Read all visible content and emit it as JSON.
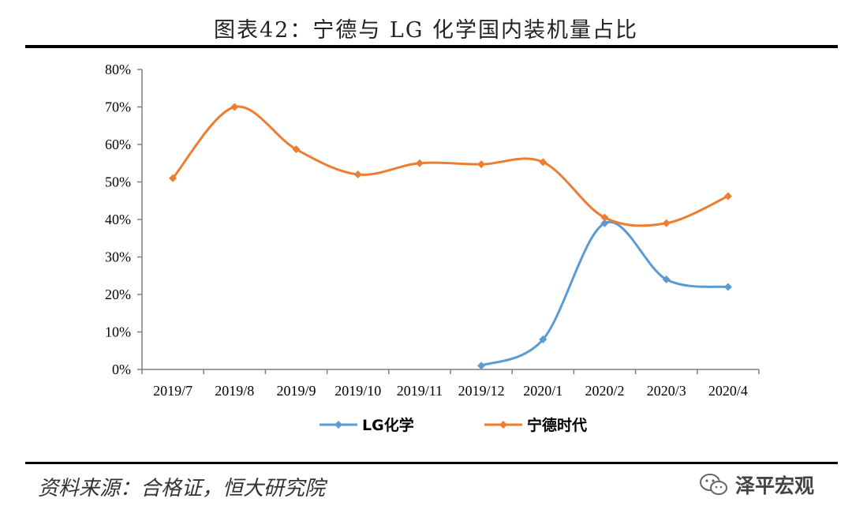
{
  "header": {
    "title": "图表42：宁德与 LG 化学国内装机量占比"
  },
  "footer": {
    "source": "资料来源：合格证，恒大研究院",
    "watermark": "泽平宏观"
  },
  "colors": {
    "lg": "#5b9bd5",
    "catl": "#ed7d31",
    "axis": "#7f7f7f"
  },
  "chart_data": {
    "type": "line",
    "title": "宁德与 LG 化学国内装机量占比",
    "categories": [
      "2019/7",
      "2019/8",
      "2019/9",
      "2019/10",
      "2019/11",
      "2019/12",
      "2020/1",
      "2020/2",
      "2020/3",
      "2020/4"
    ],
    "y_ticks": [
      "0%",
      "10%",
      "20%",
      "30%",
      "40%",
      "50%",
      "60%",
      "70%",
      "80%"
    ],
    "ylim": [
      0,
      80
    ],
    "y_unit": "%",
    "grid": false,
    "legend_position": "bottom",
    "smooth": true,
    "series": [
      {
        "name": "LG化学",
        "color": "#5b9bd5",
        "values": [
          null,
          null,
          null,
          null,
          null,
          1,
          8,
          39,
          24,
          22
        ]
      },
      {
        "name": "宁德时代",
        "color": "#ed7d31",
        "values": [
          51,
          70,
          58.7,
          52,
          55,
          54.7,
          55.3,
          40.5,
          39,
          46.2
        ]
      }
    ]
  }
}
